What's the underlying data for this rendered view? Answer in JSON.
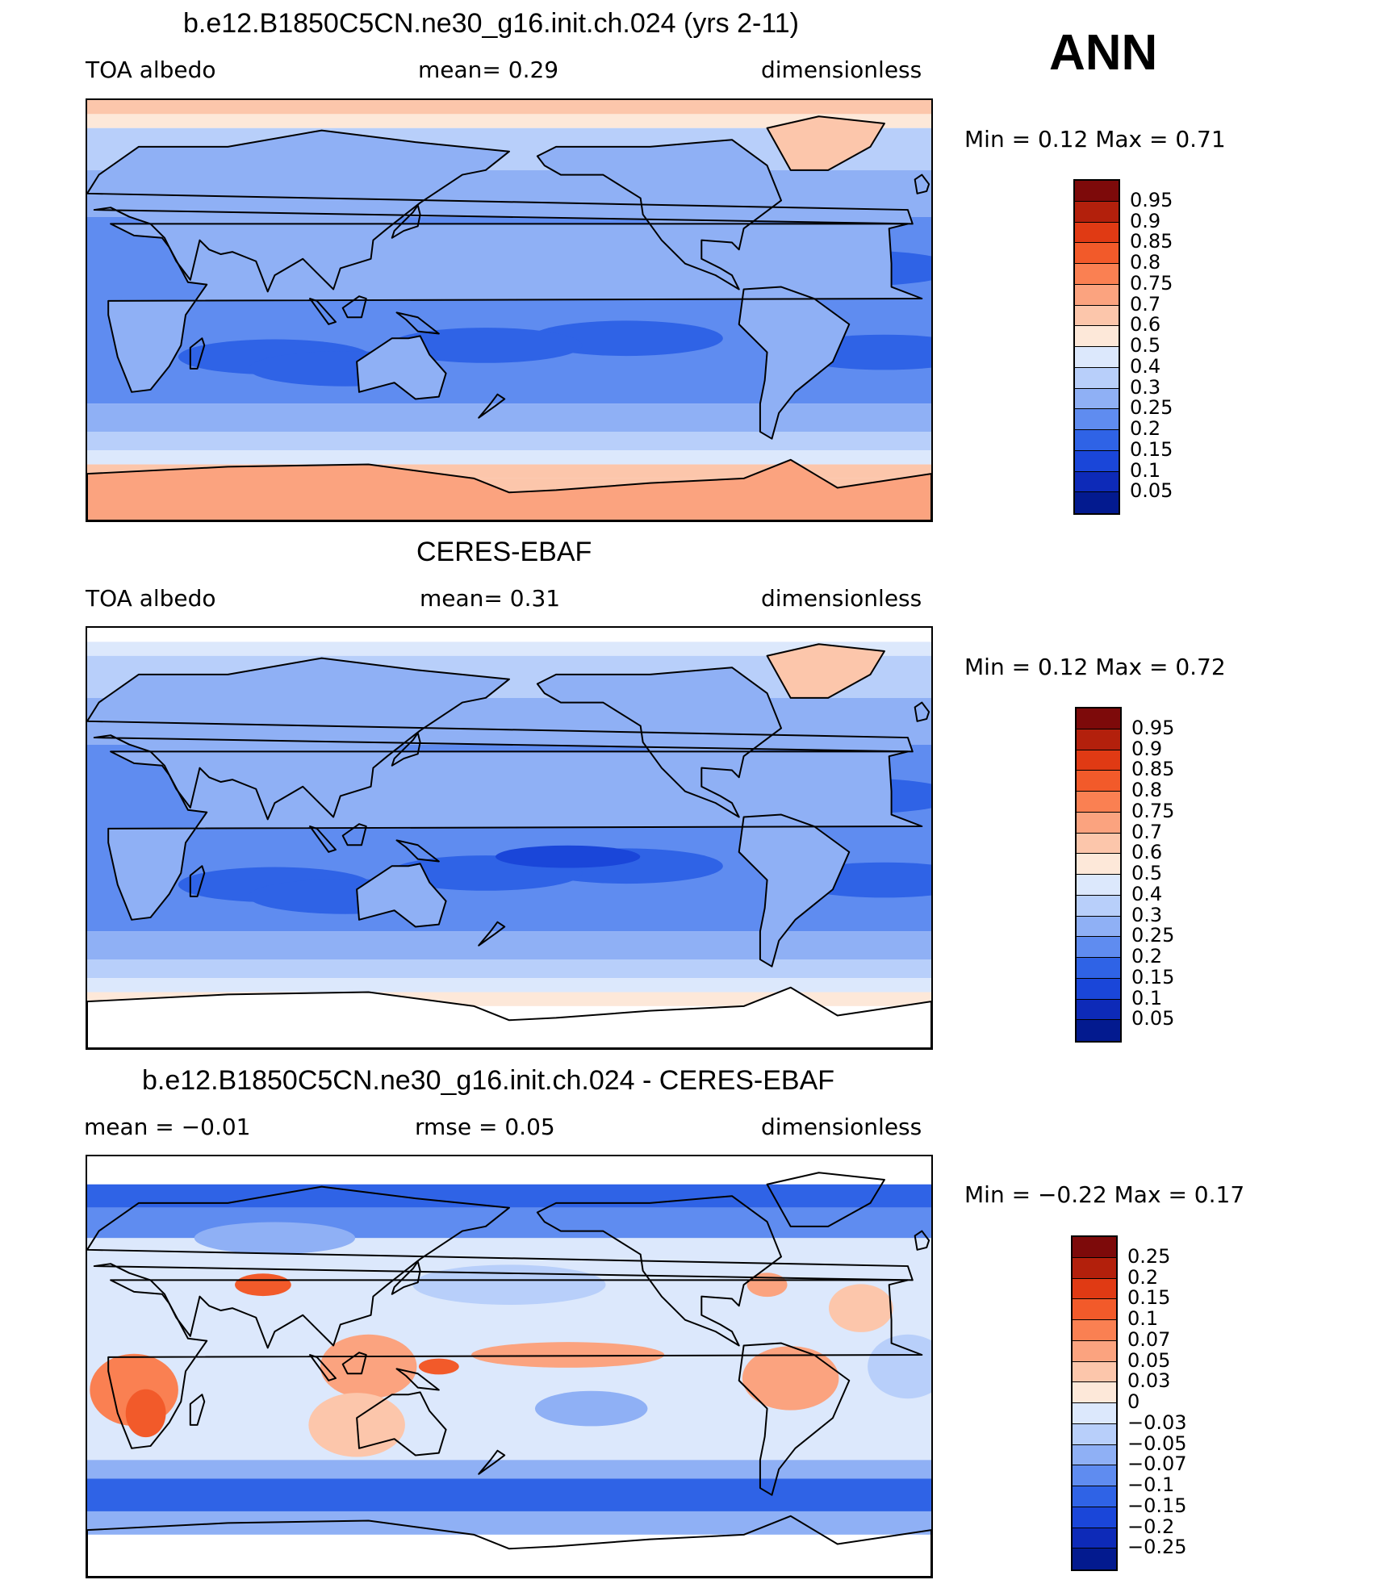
{
  "season": "ANN",
  "panels": [
    {
      "title": "b.e12.B1850C5CN.ne30_g16.init.ch.024 (yrs 2-11)",
      "variable": "TOA  albedo",
      "stat": "mean=     0.29",
      "units": "dimensionless",
      "minmax": "Min  =      0.12  Max  =      0.71",
      "levels": [
        "0.95",
        "0.9",
        "0.85",
        "0.8",
        "0.75",
        "0.7",
        "0.6",
        "0.5",
        "0.4",
        "0.3",
        "0.25",
        "0.2",
        "0.15",
        "0.1",
        "0.05"
      ]
    },
    {
      "title": "CERES-EBAF",
      "variable": "TOA  albedo",
      "stat": "mean=     0.31",
      "units": "dimensionless",
      "minmax": "Min  =      0.12  Max  =      0.72",
      "levels": [
        "0.95",
        "0.9",
        "0.85",
        "0.8",
        "0.75",
        "0.7",
        "0.6",
        "0.5",
        "0.4",
        "0.3",
        "0.25",
        "0.2",
        "0.15",
        "0.1",
        "0.05"
      ]
    },
    {
      "title": "b.e12.B1850C5CN.ne30_g16.init.ch.024 - CERES-EBAF",
      "variable": "mean  =    −0.01",
      "stat": "rmse  =     0.05",
      "units": "dimensionless",
      "minmax": "Min  =    −0.22  Max  =      0.17",
      "levels": [
        "0.25",
        "0.2",
        "0.15",
        "0.1",
        "0.07",
        "0.05",
        "0.03",
        "0",
        "−0.03",
        "−0.05",
        "−0.07",
        "−0.1",
        "−0.15",
        "−0.2",
        "−0.25"
      ]
    }
  ],
  "palette": [
    "#7d0a0a",
    "#b3200c",
    "#e03a14",
    "#f25a2a",
    "#fa8052",
    "#fba37f",
    "#fcc6ab",
    "#fde8d9",
    "#dce8fc",
    "#b8cffa",
    "#8fb0f5",
    "#5f8cf0",
    "#2f63e6",
    "#1a46d9",
    "#0d2ab8",
    "#031a8f"
  ]
}
